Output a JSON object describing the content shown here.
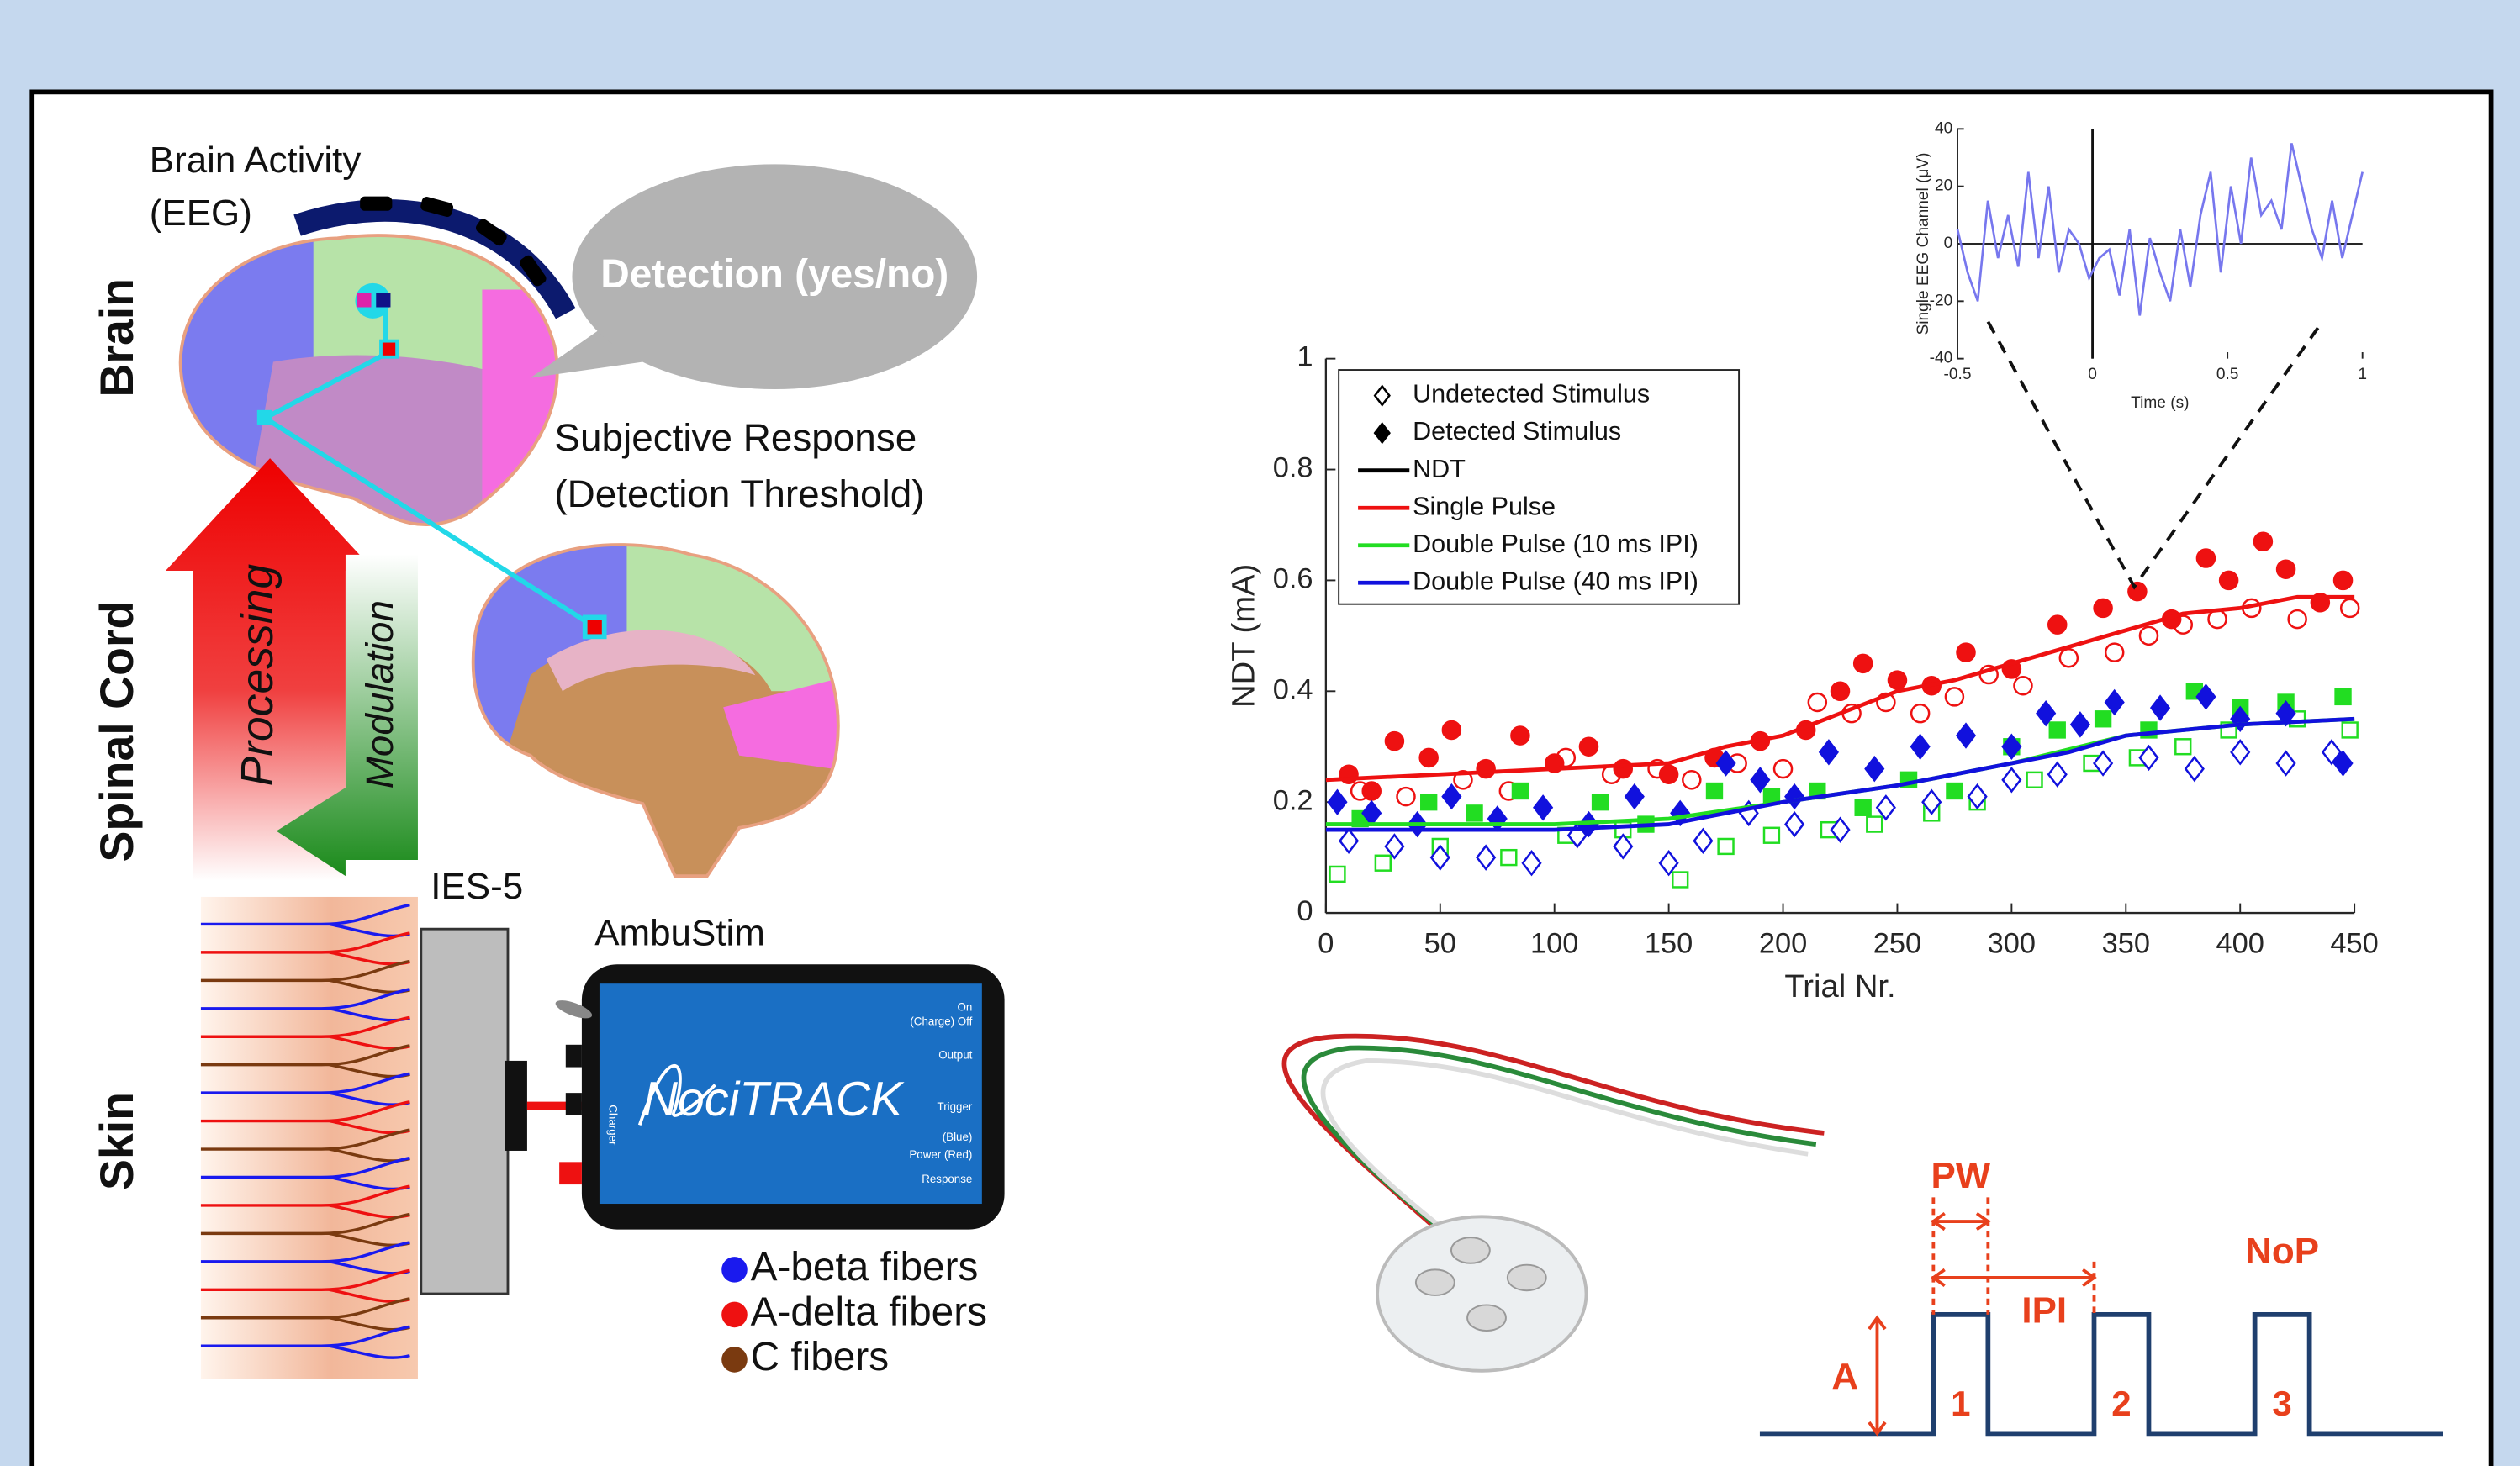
{
  "chart_data": [
    {
      "type": "scatter",
      "xlabel": "Trial Nr.",
      "ylabel": "NDT (mA)",
      "xlim": [
        0,
        450
      ],
      "xticks": [
        0,
        50,
        100,
        150,
        200,
        250,
        300,
        350,
        400,
        450
      ],
      "ylim": [
        0,
        1
      ],
      "yticks": [
        0,
        0.2,
        0.4,
        0.6,
        0.8,
        1
      ],
      "grid": false,
      "legend": "upper left",
      "legend_keys": [
        {
          "label": "Undetected Stimulus",
          "marker": "open-diamond"
        },
        {
          "label": "Detected Stimulus",
          "marker": "diamond"
        },
        {
          "label": "NDT",
          "color": "#000000"
        }
      ],
      "series": [
        {
          "name": "Single Pulse",
          "color": "#ee1111",
          "marker": "circle",
          "line": {
            "x": [
              0,
              50,
              100,
              150,
              175,
              200,
              225,
              250,
              275,
              300,
              325,
              350,
              375,
              400,
              425,
              450
            ],
            "values": [
              0.24,
              0.25,
              0.26,
              0.27,
              0.3,
              0.32,
              0.36,
              0.4,
              0.42,
              0.45,
              0.48,
              0.51,
              0.54,
              0.55,
              0.57,
              0.57
            ]
          },
          "detected": {
            "x": [
              10,
              20,
              30,
              45,
              55,
              70,
              85,
              100,
              115,
              130,
              150,
              170,
              190,
              210,
              225,
              235,
              250,
              265,
              280,
              300,
              320,
              340,
              355,
              370,
              385,
              395,
              410,
              420,
              435,
              445
            ],
            "values": [
              0.25,
              0.22,
              0.31,
              0.28,
              0.33,
              0.26,
              0.32,
              0.27,
              0.3,
              0.26,
              0.25,
              0.28,
              0.31,
              0.33,
              0.4,
              0.45,
              0.42,
              0.41,
              0.47,
              0.44,
              0.52,
              0.55,
              0.58,
              0.53,
              0.64,
              0.6,
              0.67,
              0.62,
              0.56,
              0.6
            ]
          },
          "undetected": {
            "x": [
              15,
              35,
              60,
              80,
              105,
              125,
              145,
              160,
              180,
              200,
              215,
              230,
              245,
              260,
              275,
              290,
              305,
              325,
              345,
              360,
              375,
              390,
              405,
              425,
              448
            ],
            "values": [
              0.22,
              0.21,
              0.24,
              0.22,
              0.28,
              0.25,
              0.26,
              0.24,
              0.27,
              0.26,
              0.38,
              0.36,
              0.38,
              0.36,
              0.39,
              0.43,
              0.41,
              0.46,
              0.47,
              0.5,
              0.52,
              0.53,
              0.55,
              0.53,
              0.55
            ]
          }
        },
        {
          "name": "Double Pulse (10 ms IPI)",
          "color": "#22dd22",
          "marker": "square",
          "line": {
            "x": [
              0,
              100,
              150,
              200,
              250,
              300,
              350,
              400,
              450
            ],
            "values": [
              0.16,
              0.16,
              0.17,
              0.2,
              0.23,
              0.27,
              0.32,
              0.34,
              0.35
            ]
          },
          "detected": {
            "x": [
              15,
              45,
              65,
              85,
              120,
              140,
              170,
              195,
              215,
              235,
              255,
              275,
              300,
              320,
              340,
              360,
              380,
              400,
              420,
              445
            ],
            "values": [
              0.17,
              0.2,
              0.18,
              0.22,
              0.2,
              0.16,
              0.22,
              0.21,
              0.22,
              0.19,
              0.24,
              0.22,
              0.3,
              0.33,
              0.35,
              0.33,
              0.4,
              0.37,
              0.38,
              0.39
            ]
          },
          "undetected": {
            "x": [
              5,
              25,
              50,
              80,
              105,
              130,
              155,
              175,
              195,
              220,
              240,
              265,
              285,
              310,
              335,
              355,
              375,
              395,
              425,
              448
            ],
            "values": [
              0.07,
              0.09,
              0.12,
              0.1,
              0.14,
              0.15,
              0.06,
              0.12,
              0.14,
              0.15,
              0.16,
              0.18,
              0.2,
              0.24,
              0.27,
              0.28,
              0.3,
              0.33,
              0.35,
              0.33
            ]
          }
        },
        {
          "name": "Double Pulse (40 ms IPI)",
          "color": "#1111dd",
          "marker": "diamond",
          "line": {
            "x": [
              0,
              50,
              100,
              150,
              175,
              200,
              250,
              300,
              325,
              350,
              375,
              400,
              450
            ],
            "values": [
              0.15,
              0.15,
              0.15,
              0.16,
              0.18,
              0.2,
              0.23,
              0.27,
              0.29,
              0.32,
              0.33,
              0.34,
              0.35
            ]
          },
          "detected": {
            "x": [
              5,
              20,
              40,
              55,
              75,
              95,
              115,
              135,
              155,
              175,
              190,
              205,
              220,
              240,
              260,
              280,
              300,
              315,
              330,
              345,
              365,
              385,
              400,
              420,
              445
            ],
            "values": [
              0.2,
              0.18,
              0.16,
              0.21,
              0.17,
              0.19,
              0.16,
              0.21,
              0.18,
              0.27,
              0.24,
              0.21,
              0.29,
              0.26,
              0.3,
              0.32,
              0.3,
              0.36,
              0.34,
              0.38,
              0.37,
              0.39,
              0.35,
              0.36,
              0.27
            ]
          },
          "undetected": {
            "x": [
              10,
              30,
              50,
              70,
              90,
              110,
              130,
              150,
              165,
              185,
              205,
              225,
              245,
              265,
              285,
              300,
              320,
              340,
              360,
              380,
              400,
              420,
              440
            ],
            "values": [
              0.13,
              0.12,
              0.1,
              0.1,
              0.09,
              0.14,
              0.12,
              0.09,
              0.13,
              0.18,
              0.16,
              0.15,
              0.19,
              0.2,
              0.21,
              0.24,
              0.25,
              0.27,
              0.28,
              0.26,
              0.29,
              0.27,
              0.29
            ]
          }
        }
      ]
    },
    {
      "type": "line",
      "xlabel": "Time (s)",
      "ylabel": "Single EEG Channel (μV)",
      "xlim": [
        -0.5,
        1
      ],
      "xticks": [
        -0.5,
        0,
        0.5,
        1
      ],
      "ylim": [
        -40,
        40
      ],
      "yticks": [
        -40,
        -20,
        0,
        20,
        40
      ],
      "vline": 0,
      "color": "#7777ee",
      "x": [
        -0.5,
        -0.4625,
        -0.425,
        -0.3875,
        -0.35,
        -0.3125,
        -0.275,
        -0.2375,
        -0.2,
        -0.1625,
        -0.125,
        -0.0875,
        -0.05,
        -0.0125,
        0.025,
        0.0625,
        0.1,
        0.1375,
        0.175,
        0.2125,
        0.25,
        0.2875,
        0.325,
        0.3625,
        0.4,
        0.4375,
        0.475,
        0.5125,
        0.55,
        0.5875,
        0.625,
        0.6625,
        0.7,
        0.7375,
        0.775,
        0.8125,
        0.85,
        0.8875,
        0.925,
        0.9625,
        1
      ],
      "values": [
        5,
        -10,
        -20,
        15,
        -5,
        10,
        -8,
        25,
        -5,
        20,
        -10,
        5,
        0,
        -12,
        -5,
        -2,
        -18,
        5,
        -25,
        2,
        -10,
        -20,
        5,
        -15,
        10,
        25,
        -10,
        20,
        0,
        30,
        10,
        15,
        5,
        35,
        20,
        5,
        -5,
        15,
        -5,
        10,
        25
      ]
    }
  ],
  "diagram": {
    "brain_activity": [
      "Brain Activity",
      "(EEG)"
    ],
    "detection": "Detection (yes/no)",
    "subjective_response": [
      "Subjective Response",
      "(Detection Threshold)"
    ],
    "levels": [
      "Brain",
      "Spinal Cord",
      "Skin"
    ],
    "processing": "Processing",
    "modulation": "Modulation",
    "electrode": "IES-5",
    "stimulator": "AmbuStim",
    "device": {
      "brand": "NociTRACK",
      "labels": [
        "On",
        "(Charge) Off",
        "Output",
        "Trigger",
        "(Blue)",
        "Power (Red)",
        "Response"
      ],
      "charger": "Charger"
    },
    "fibers": [
      {
        "label": "A-beta fibers",
        "color": "#1a1aee"
      },
      {
        "label": "A-delta fibers",
        "color": "#ee1111"
      },
      {
        "label": "C fibers",
        "color": "#7a3a10"
      }
    ],
    "pulse": {
      "pw": "PW",
      "ipi": "IPI",
      "nop": "NoP",
      "amplitude": "A",
      "numbers": [
        "1",
        "2",
        "3"
      ]
    }
  }
}
